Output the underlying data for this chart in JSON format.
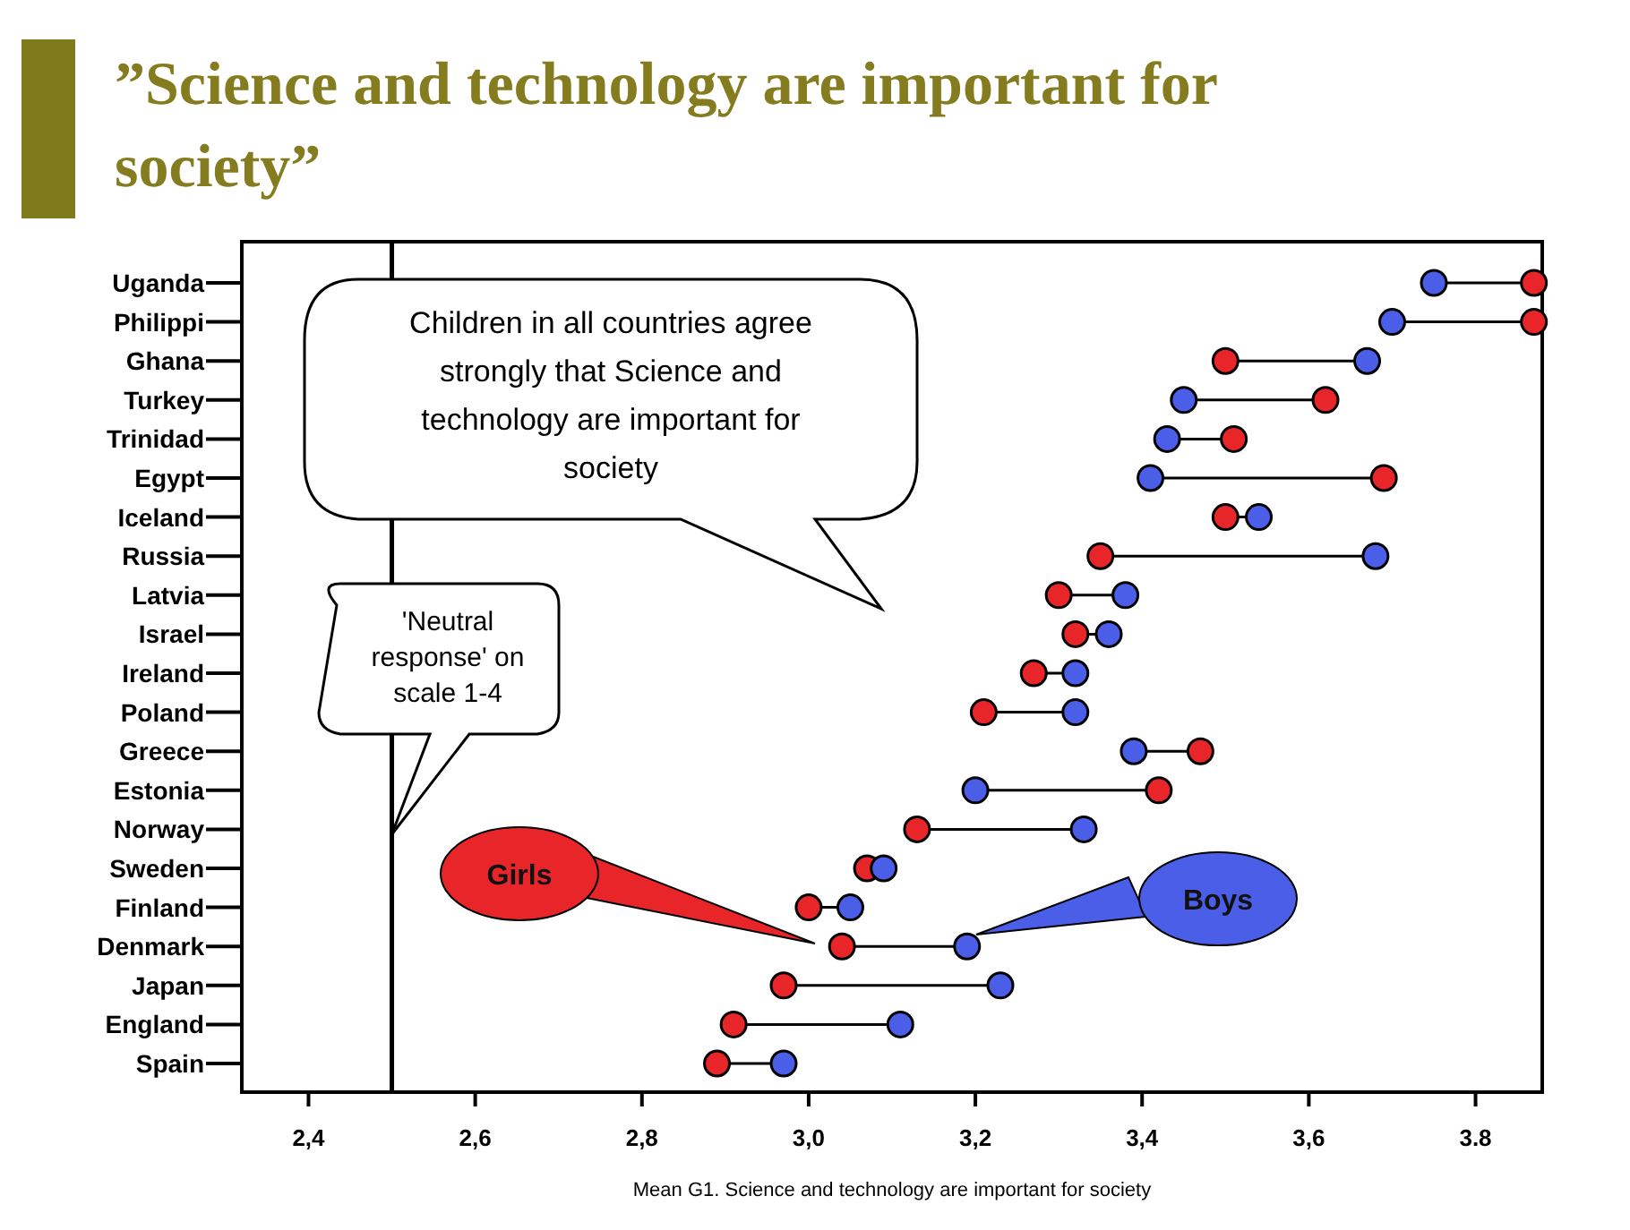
{
  "chart_data": {
    "type": "scatter",
    "orientation": "horizontal",
    "title": "”Science and technology are important for society”",
    "xlabel": "Mean G1. Science and technology are important for society",
    "categories": [
      "Uganda",
      "Philippi",
      "Ghana",
      "Turkey",
      "Trinidad",
      "Egypt",
      "Iceland",
      "Russia",
      "Latvia",
      "Israel",
      "Ireland",
      "Poland",
      "Greece",
      "Estonia",
      "Norway",
      "Sweden",
      "Finland",
      "Denmark",
      "Japan",
      "England",
      "Spain"
    ],
    "series": [
      {
        "name": "Girls",
        "color": "#e8262a",
        "values": [
          3.87,
          3.87,
          3.5,
          3.62,
          3.51,
          3.69,
          3.5,
          3.35,
          3.3,
          3.32,
          3.27,
          3.21,
          3.47,
          3.42,
          3.13,
          3.07,
          3.0,
          3.04,
          2.97,
          2.91,
          2.89
        ]
      },
      {
        "name": "Boys",
        "color": "#4a5ee8",
        "values": [
          3.75,
          3.7,
          3.67,
          3.45,
          3.43,
          3.41,
          3.54,
          3.68,
          3.38,
          3.36,
          3.32,
          3.32,
          3.39,
          3.2,
          3.33,
          3.09,
          3.05,
          3.19,
          3.23,
          3.11,
          2.97
        ]
      }
    ],
    "xlim": [
      2.32,
      3.88
    ],
    "xticks": [
      {
        "value": 2.4,
        "label": "2,4"
      },
      {
        "value": 2.6,
        "label": "2,6"
      },
      {
        "value": 2.8,
        "label": "2,8"
      },
      {
        "value": 3.0,
        "label": "3,0"
      },
      {
        "value": 3.2,
        "label": "3,2"
      },
      {
        "value": 3.4,
        "label": "3,4"
      },
      {
        "value": 3.6,
        "label": "3,6"
      },
      {
        "value": 3.8,
        "label": "3.8"
      }
    ],
    "ref_lines": [
      {
        "axis": "x",
        "value": 2.5,
        "label": "'Neutral response' on scale 1-4",
        "color": "#000000"
      }
    ],
    "annotations": [
      "Children in all countries agree strongly that Science and technology are important for society"
    ],
    "marker": "circle",
    "legend": "bottom",
    "grid": false
  }
}
